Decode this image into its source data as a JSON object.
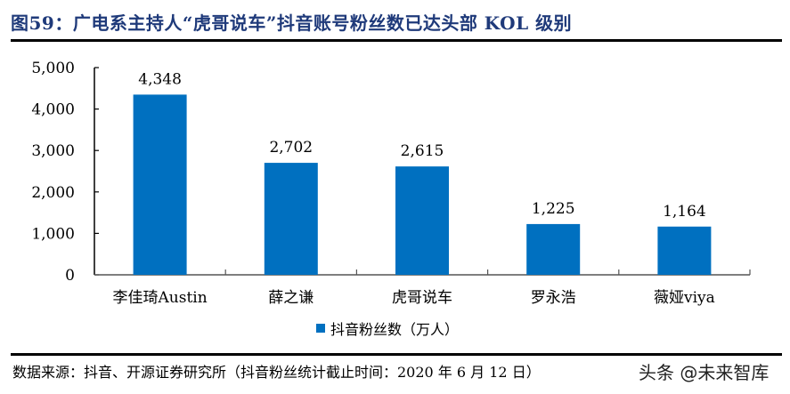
{
  "header": {
    "title": "图59：广电系主持人“虎哥说车”抖音账号粉丝数已达头部 KOL 级别"
  },
  "footer": {
    "source": "数据来源：抖音、开源证券研究所（抖音粉丝统计截止时间：2020 年 6 月 12 日）",
    "watermark": "头条 @未来智库"
  },
  "legend": {
    "label": "抖音粉丝数（万人）",
    "color": "#0070c0"
  },
  "chart_data": {
    "type": "bar",
    "title": "广电系主持人“虎哥说车”抖音账号粉丝数已达头部 KOL 级别",
    "categories": [
      "李佳琦Austin",
      "薛之谦",
      "虎哥说车",
      "罗永浩",
      "薇娅viya"
    ],
    "series": [
      {
        "name": "抖音粉丝数（万人）",
        "values": [
          4348,
          2702,
          2615,
          1225,
          1164
        ],
        "labels": [
          "4,348",
          "2,702",
          "2,615",
          "1,225",
          "1,164"
        ],
        "color": "#0070c0"
      }
    ],
    "xlabel": "",
    "ylabel": "",
    "ylim": [
      0,
      5000
    ],
    "yticks": [
      0,
      1000,
      2000,
      3000,
      4000,
      5000
    ],
    "ytick_labels": [
      "0",
      "1,000",
      "2,000",
      "3,000",
      "4,000",
      "5,000"
    ],
    "grid": false,
    "legend_position": "bottom"
  }
}
